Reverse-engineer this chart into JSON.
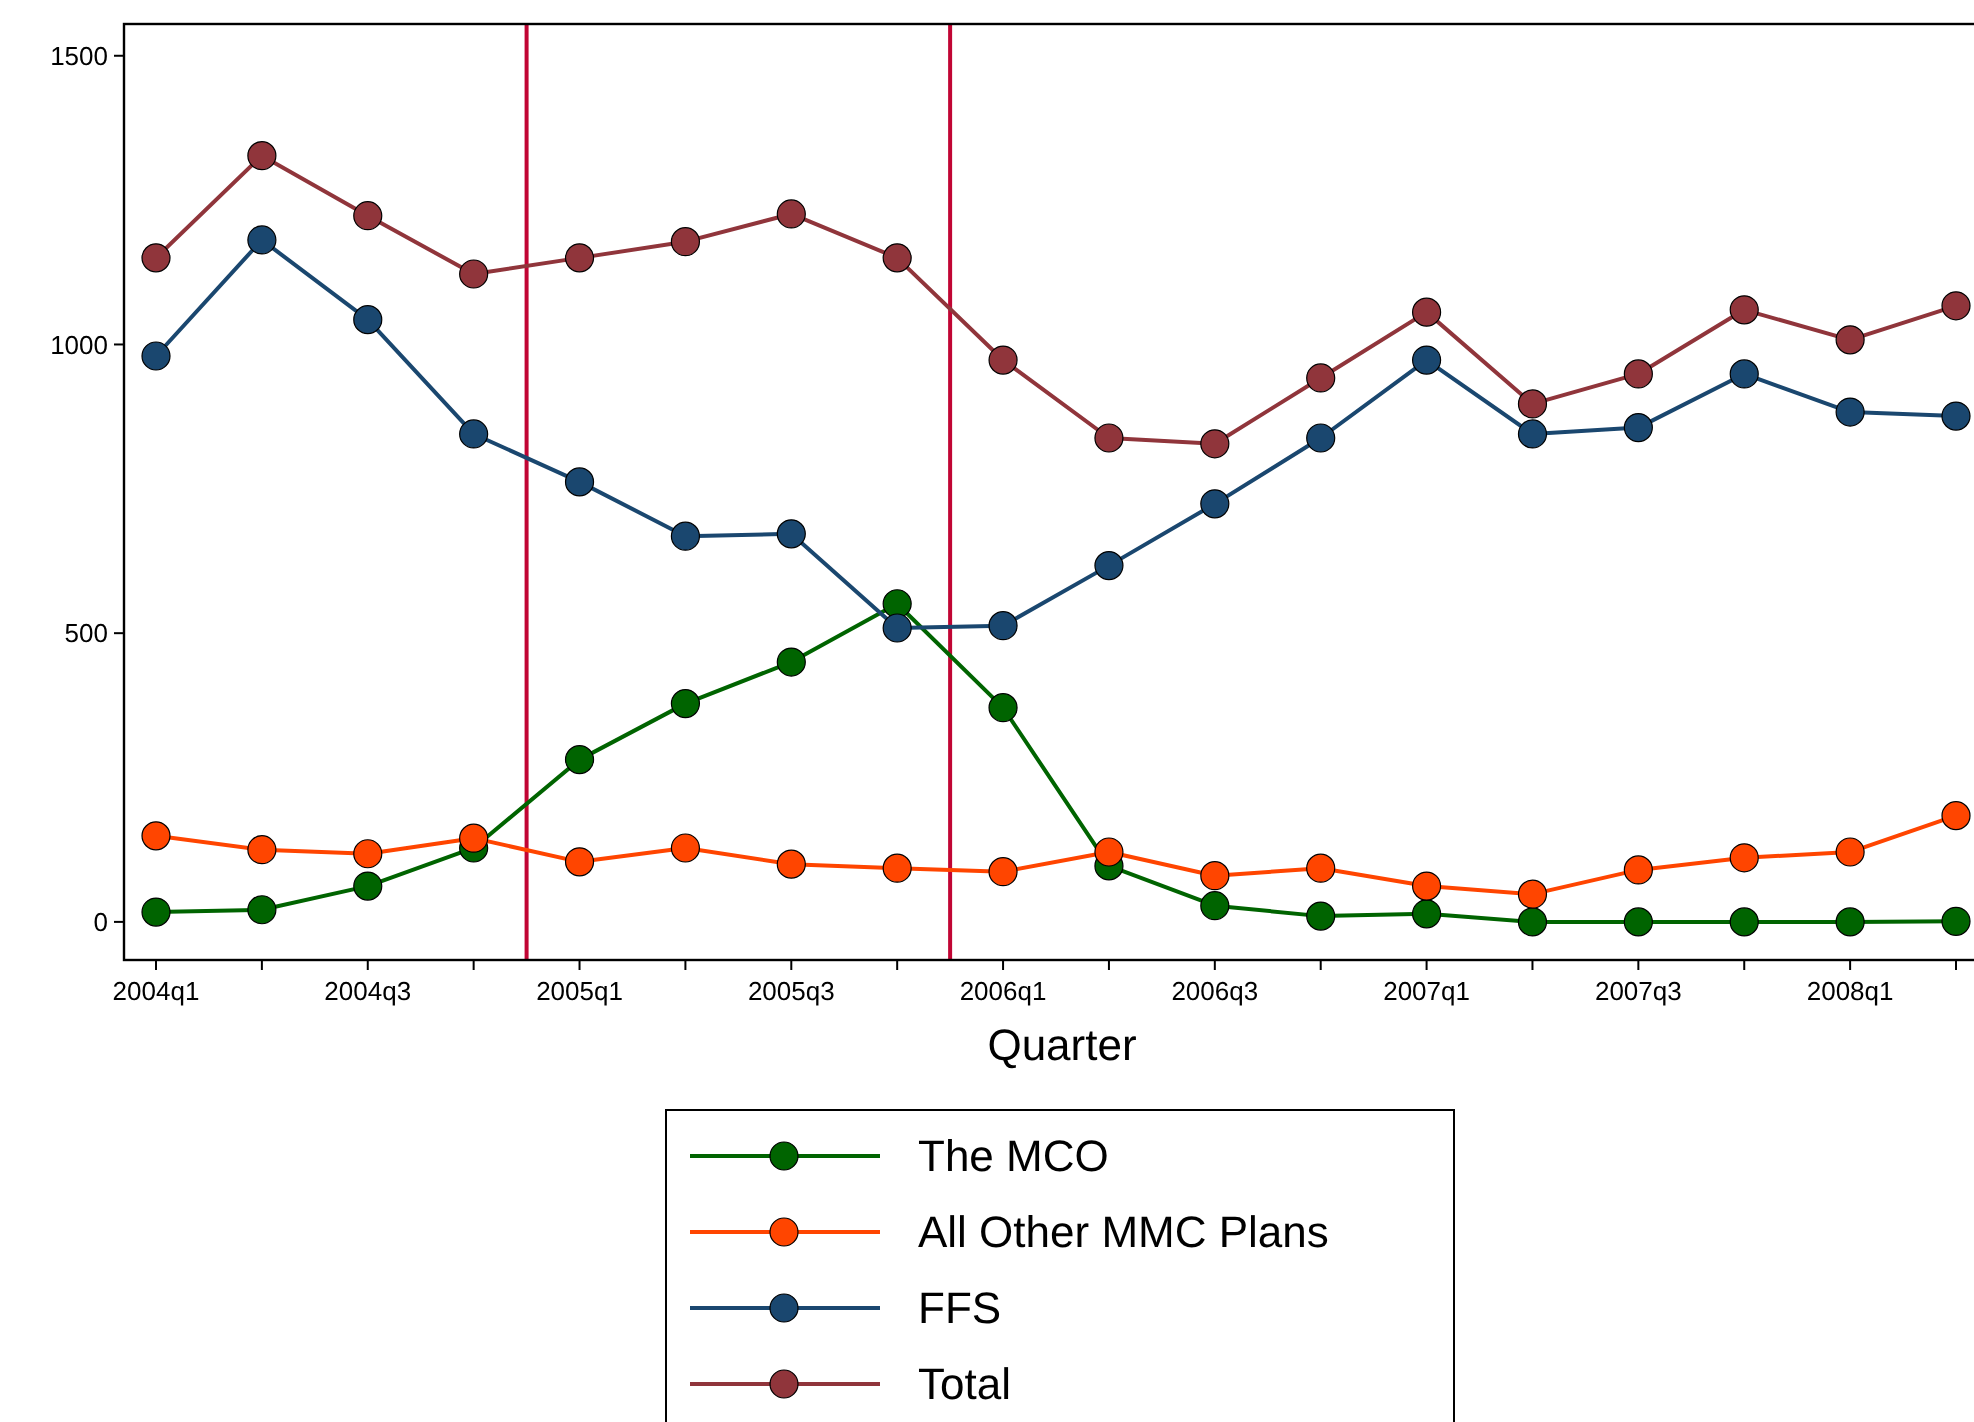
{
  "chart_data": {
    "type": "line",
    "xlabel": "Quarter",
    "categories": [
      "2004q1",
      null,
      "2004q3",
      null,
      "2005q1",
      null,
      "2005q3",
      null,
      "2006q1",
      null,
      "2006q3",
      null,
      "2007q1",
      null,
      "2007q3",
      null,
      "2008q1",
      null
    ],
    "series": [
      {
        "name": "The MCO",
        "color": "#006400",
        "values": [
          17,
          21,
          62,
          128,
          281,
          378,
          450,
          551,
          371,
          97,
          28,
          10,
          14,
          0,
          0,
          0,
          0,
          1
        ]
      },
      {
        "name": "All Other MMC Plans",
        "color": "#ff4500",
        "values": [
          149,
          125,
          118,
          145,
          104,
          128,
          100,
          93,
          87,
          121,
          80,
          93,
          62,
          48,
          90,
          111,
          121,
          184
        ]
      },
      {
        "name": "FFS",
        "color": "#1a476f",
        "values": [
          980,
          1181,
          1043,
          845,
          762,
          668,
          672,
          509,
          513,
          617,
          724,
          838,
          973,
          845,
          856,
          949,
          883,
          876
        ]
      },
      {
        "name": "Total",
        "color": "#90353b",
        "values": [
          1150,
          1327,
          1223,
          1122,
          1150,
          1178,
          1226,
          1150,
          973,
          838,
          828,
          942,
          1056,
          897,
          949,
          1060,
          1008,
          1067
        ]
      }
    ],
    "ylim": [
      -66,
      1555
    ],
    "yticks": [
      0,
      500,
      1000,
      1500
    ],
    "marker": "circle",
    "legend": "bottom",
    "grid": false
  }
}
